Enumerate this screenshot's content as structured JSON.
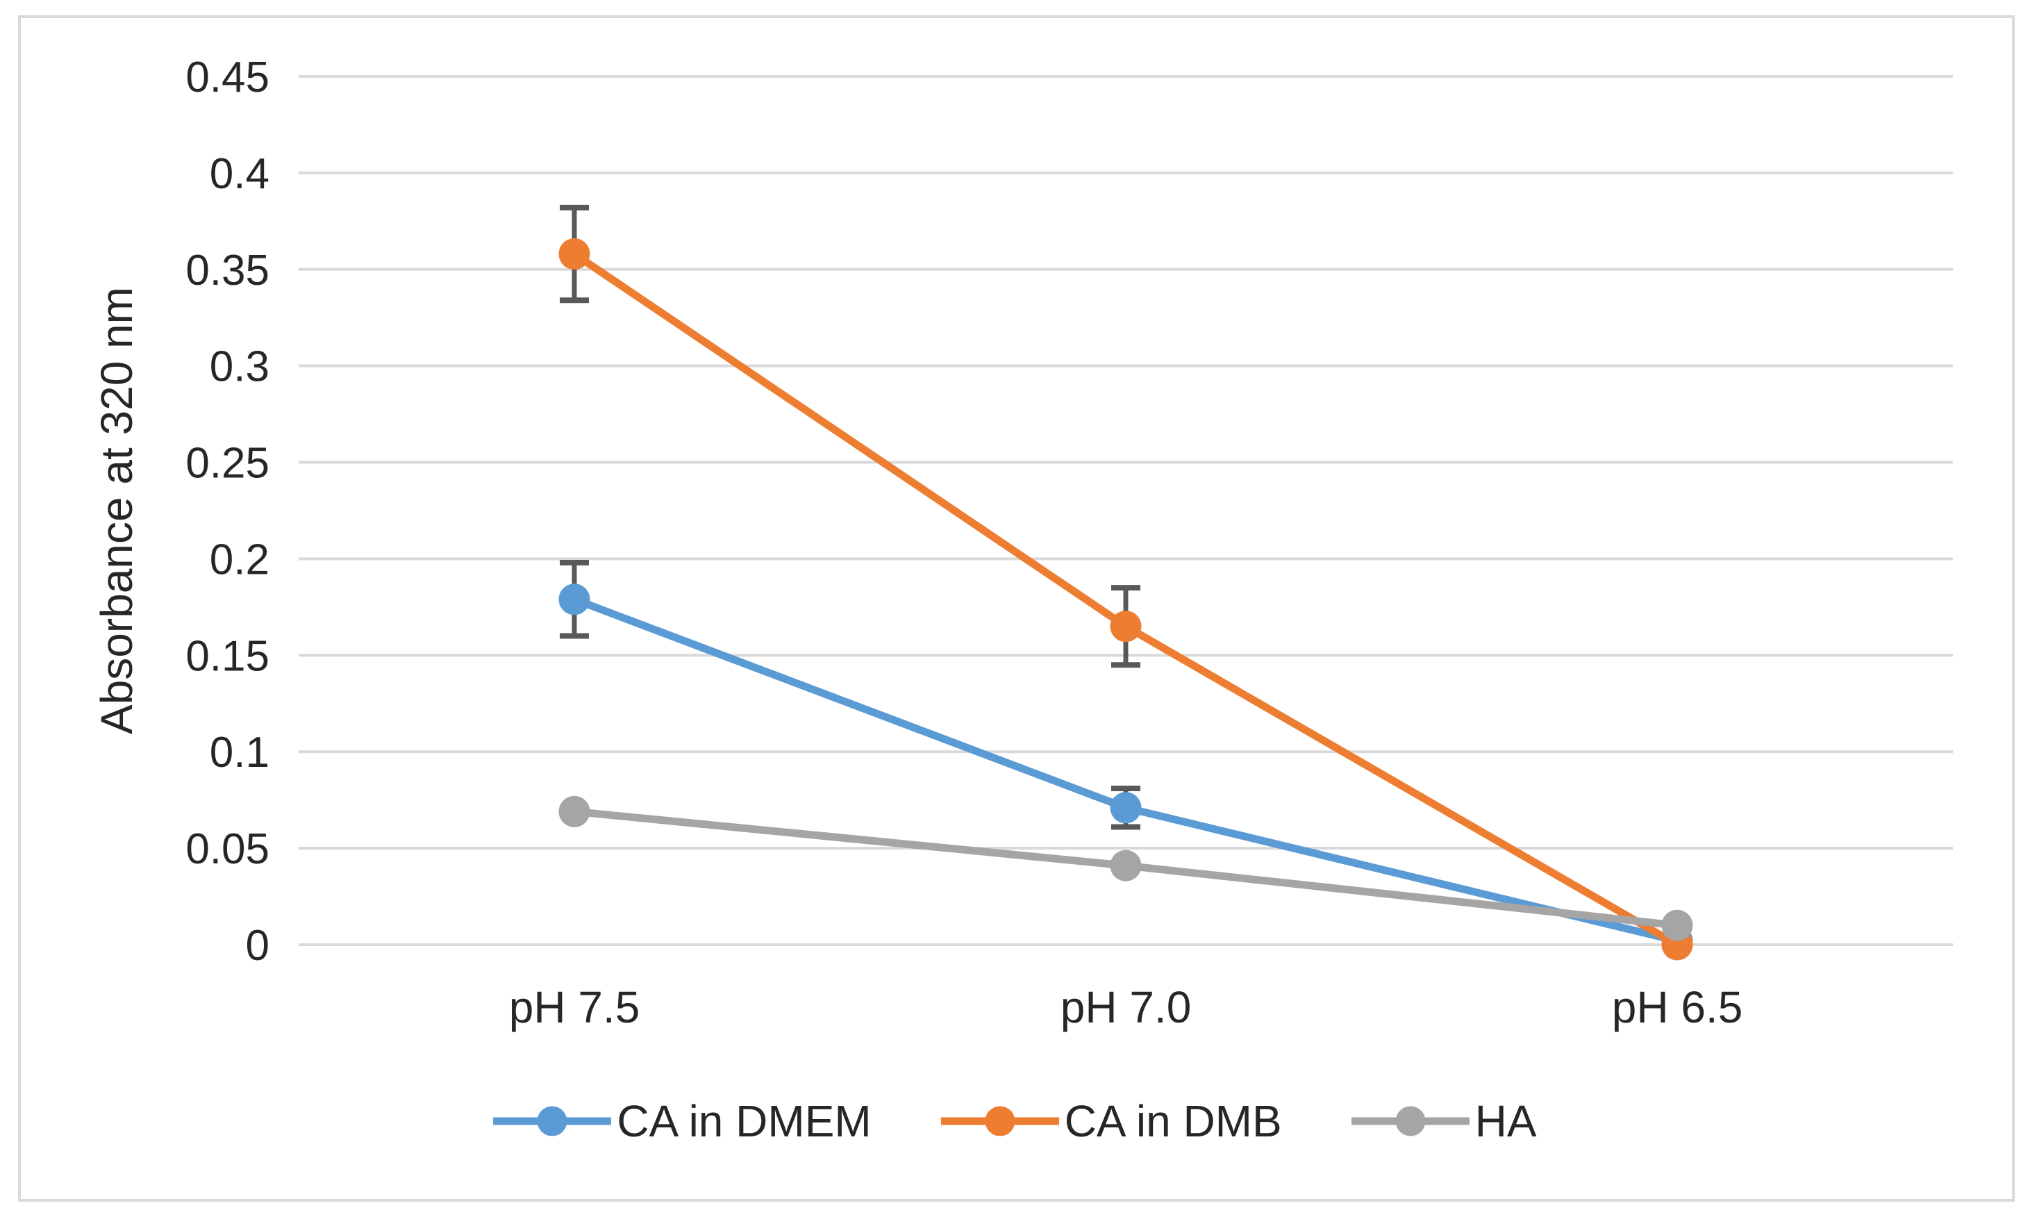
{
  "figure": {
    "background": "#FFFFFF",
    "border_color": "#D9D9D9"
  },
  "chart_data": {
    "type": "line",
    "title": "",
    "xlabel": "",
    "ylabel": "Absorbance at 320 nm",
    "categories": [
      "pH 7.5",
      "pH 7.0",
      "pH 6.5"
    ],
    "series": [
      {
        "name": "CA in DMEM",
        "color": "#5B9BD5",
        "values": [
          0.179,
          0.071,
          0.002
        ],
        "error": [
          0.019,
          0.01,
          null
        ]
      },
      {
        "name": "CA in DMB",
        "color": "#ED7D31",
        "values": [
          0.358,
          0.165,
          0.0
        ],
        "error": [
          0.024,
          0.02,
          null
        ]
      },
      {
        "name": "HA",
        "color": "#A5A5A5",
        "values": [
          0.069,
          0.041,
          0.01
        ],
        "error": [
          null,
          null,
          null
        ]
      }
    ],
    "ylim": [
      0,
      0.45
    ],
    "ytick_step": 0.05,
    "ytick_labels": [
      "0",
      "0.05",
      "0.1",
      "0.15",
      "0.2",
      "0.25",
      "0.3",
      "0.35",
      "0.4",
      "0.45"
    ],
    "grid": true,
    "gridline_color": "#D9D9D9",
    "error_bar_color": "#595959",
    "text_color": "#262626",
    "legend_position": "bottom",
    "marker_shape": "circle"
  }
}
